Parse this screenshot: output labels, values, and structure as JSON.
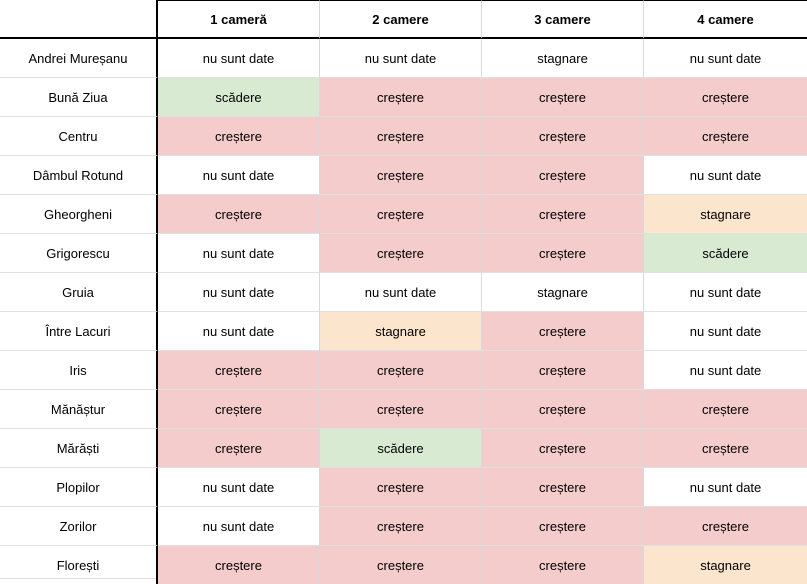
{
  "chart_data": {
    "type": "table",
    "title": "",
    "corner_label": "",
    "columns": [
      "1 cameră",
      "2 camere",
      "3 camere",
      "4 camere"
    ],
    "status_colors": {
      "up": "#f4cccc",
      "down": "#d9ead3",
      "flat": "#fce5cd",
      "none": "#ffffff"
    },
    "rows": [
      {
        "label": "Andrei Mureșanu",
        "values": [
          "nu sunt date",
          "nu sunt date",
          "stagnare",
          "nu sunt date"
        ],
        "status": [
          "none",
          "none",
          "none",
          "none"
        ]
      },
      {
        "label": "Bună Ziua",
        "values": [
          "scădere",
          "creștere",
          "creștere",
          "creștere"
        ],
        "status": [
          "down",
          "up",
          "up",
          "up"
        ]
      },
      {
        "label": "Centru",
        "values": [
          "creștere",
          "creștere",
          "creștere",
          "creștere"
        ],
        "status": [
          "up",
          "up",
          "up",
          "up"
        ]
      },
      {
        "label": "Dâmbul Rotund",
        "values": [
          "nu sunt date",
          "creștere",
          "creștere",
          "nu sunt date"
        ],
        "status": [
          "none",
          "up",
          "up",
          "none"
        ]
      },
      {
        "label": "Gheorgheni",
        "values": [
          "creștere",
          "creștere",
          "creștere",
          "stagnare"
        ],
        "status": [
          "up",
          "up",
          "up",
          "flat"
        ]
      },
      {
        "label": "Grigorescu",
        "values": [
          "nu sunt date",
          "creștere",
          "creștere",
          "scădere"
        ],
        "status": [
          "none",
          "up",
          "up",
          "down"
        ]
      },
      {
        "label": "Gruia",
        "values": [
          "nu sunt date",
          "nu sunt date",
          "stagnare",
          "nu sunt date"
        ],
        "status": [
          "none",
          "none",
          "none",
          "none"
        ]
      },
      {
        "label": "Între Lacuri",
        "values": [
          "nu sunt date",
          "stagnare",
          "creștere",
          "nu sunt date"
        ],
        "status": [
          "none",
          "flat",
          "up",
          "none"
        ]
      },
      {
        "label": "Iris",
        "values": [
          "creștere",
          "creștere",
          "creștere",
          "nu sunt date"
        ],
        "status": [
          "up",
          "up",
          "up",
          "none"
        ]
      },
      {
        "label": "Mănăștur",
        "values": [
          "creștere",
          "creștere",
          "creștere",
          "creștere"
        ],
        "status": [
          "up",
          "up",
          "up",
          "up"
        ]
      },
      {
        "label": "Mărăști",
        "values": [
          "creștere",
          "scădere",
          "creștere",
          "creștere"
        ],
        "status": [
          "up",
          "down",
          "up",
          "up"
        ]
      },
      {
        "label": "Plopilor",
        "values": [
          "nu sunt date",
          "creștere",
          "creștere",
          "nu sunt date"
        ],
        "status": [
          "none",
          "up",
          "up",
          "none"
        ]
      },
      {
        "label": "Zorilor",
        "values": [
          "nu sunt date",
          "creștere",
          "creștere",
          "creștere"
        ],
        "status": [
          "none",
          "up",
          "up",
          "up"
        ]
      },
      {
        "label": "Florești",
        "values": [
          "creștere",
          "creștere",
          "creștere",
          "stagnare"
        ],
        "status": [
          "up",
          "up",
          "up",
          "flat"
        ]
      }
    ]
  }
}
